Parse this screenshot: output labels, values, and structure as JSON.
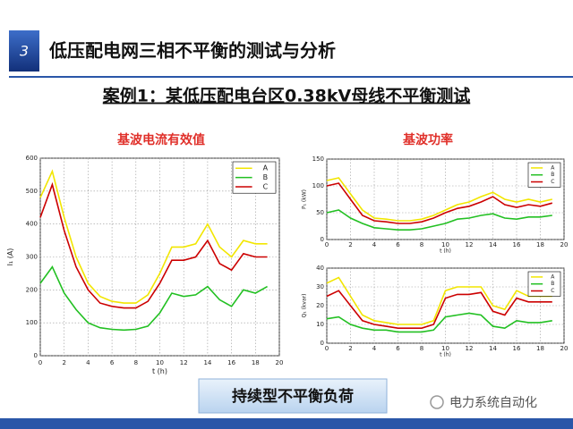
{
  "slide": {
    "number": "3",
    "title": "低压配电网三相不平衡的测试与分析",
    "subtitle": "案例1：某低压配电台区0.38kV母线不平衡测试",
    "left_heading": "基波电流有效值",
    "right_heading": "基波功率",
    "conclusion": "持续型不平衡负荷",
    "watermark": "电力系统自动化"
  },
  "chart_data": [
    {
      "type": "line",
      "ylabel": "I₁ (A)",
      "xlabel": "t (h)",
      "legend": "upper right",
      "grid": true,
      "x": [
        0,
        1,
        2,
        3,
        4,
        5,
        6,
        7,
        8,
        9,
        10,
        11,
        12,
        13,
        14,
        15,
        16,
        17,
        18,
        19
      ],
      "xlim": [
        0,
        20
      ],
      "xticks": [
        0,
        2,
        4,
        6,
        8,
        10,
        12,
        14,
        16,
        18,
        20
      ],
      "ylim": [
        0,
        600
      ],
      "yticks": [
        0,
        100,
        200,
        300,
        400,
        500,
        600
      ],
      "series": [
        {
          "name": "A",
          "color": "#f2e600",
          "values": [
            480,
            560,
            420,
            300,
            220,
            180,
            165,
            160,
            160,
            185,
            250,
            330,
            330,
            340,
            400,
            330,
            300,
            350,
            340,
            340
          ]
        },
        {
          "name": "B",
          "color": "#22c022",
          "values": [
            220,
            270,
            190,
            140,
            100,
            85,
            80,
            78,
            80,
            90,
            130,
            190,
            180,
            185,
            210,
            170,
            150,
            200,
            190,
            210
          ]
        },
        {
          "name": "C",
          "color": "#cc0000",
          "values": [
            420,
            520,
            380,
            270,
            200,
            160,
            150,
            145,
            145,
            165,
            220,
            290,
            290,
            300,
            350,
            280,
            260,
            310,
            300,
            300
          ]
        }
      ]
    },
    {
      "type": "line",
      "ylabel": "P₁ (kW)",
      "xlabel": "t (h)",
      "legend": "upper right",
      "grid": true,
      "x": [
        0,
        1,
        2,
        3,
        4,
        5,
        6,
        7,
        8,
        9,
        10,
        11,
        12,
        13,
        14,
        15,
        16,
        17,
        18,
        19
      ],
      "xlim": [
        0,
        20
      ],
      "xticks": [
        0,
        2,
        4,
        6,
        8,
        10,
        12,
        14,
        16,
        18,
        20
      ],
      "ylim": [
        0,
        150
      ],
      "yticks": [
        0,
        50,
        100,
        150
      ],
      "series": [
        {
          "name": "A",
          "color": "#f2e600",
          "values": [
            110,
            115,
            85,
            55,
            40,
            38,
            35,
            35,
            38,
            45,
            55,
            65,
            70,
            80,
            88,
            75,
            70,
            75,
            70,
            75
          ]
        },
        {
          "name": "B",
          "color": "#22c022",
          "values": [
            50,
            55,
            40,
            30,
            22,
            20,
            18,
            18,
            20,
            25,
            30,
            38,
            40,
            45,
            48,
            40,
            38,
            42,
            42,
            45
          ]
        },
        {
          "name": "C",
          "color": "#cc0000",
          "values": [
            100,
            105,
            75,
            45,
            35,
            33,
            30,
            30,
            33,
            40,
            50,
            58,
            62,
            70,
            80,
            65,
            60,
            65,
            62,
            68
          ]
        }
      ]
    },
    {
      "type": "line",
      "ylabel": "Q₁ (kvar)",
      "xlabel": "t (h)",
      "legend": "upper right",
      "grid": true,
      "x": [
        0,
        1,
        2,
        3,
        4,
        5,
        6,
        7,
        8,
        9,
        10,
        11,
        12,
        13,
        14,
        15,
        16,
        17,
        18,
        19
      ],
      "xlim": [
        0,
        20
      ],
      "xticks": [
        0,
        2,
        4,
        6,
        8,
        10,
        12,
        14,
        16,
        18,
        20
      ],
      "ylim": [
        0,
        40
      ],
      "yticks": [
        0,
        10,
        20,
        30,
        40
      ],
      "series": [
        {
          "name": "A",
          "color": "#f2e600",
          "values": [
            32,
            35,
            25,
            15,
            12,
            11,
            10,
            10,
            10,
            12,
            28,
            30,
            30,
            30,
            20,
            18,
            28,
            25,
            25,
            25
          ]
        },
        {
          "name": "B",
          "color": "#22c022",
          "values": [
            13,
            14,
            10,
            8,
            7,
            7,
            6,
            6,
            6,
            7,
            14,
            15,
            16,
            15,
            9,
            8,
            12,
            11,
            11,
            12
          ]
        },
        {
          "name": "C",
          "color": "#cc0000",
          "values": [
            25,
            28,
            20,
            12,
            10,
            9,
            8,
            8,
            8,
            10,
            24,
            26,
            26,
            27,
            17,
            15,
            24,
            22,
            22,
            22
          ]
        }
      ]
    }
  ]
}
